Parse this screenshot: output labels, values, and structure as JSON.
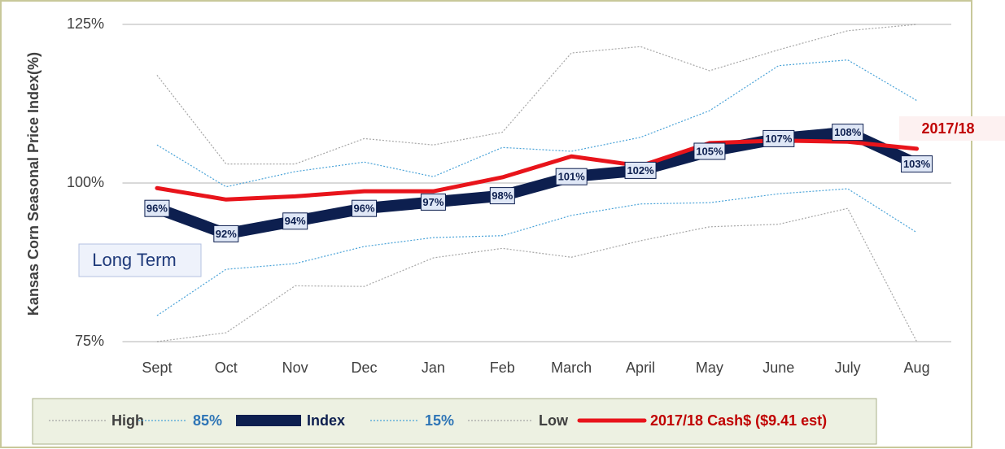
{
  "chart_data": {
    "type": "line",
    "y_label": "Kansas Corn Seasonal Price Index(%)",
    "categories": [
      "Sept",
      "Oct",
      "Nov",
      "Dec",
      "Jan",
      "Feb",
      "March",
      "April",
      "May",
      "June",
      "July",
      "Aug"
    ],
    "ylim": [
      75,
      125
    ],
    "yticks": [
      {
        "value": 75,
        "label": "75%"
      },
      {
        "value": 100,
        "label": "100%"
      },
      {
        "value": 125,
        "label": "125%"
      }
    ],
    "grid": true,
    "annotations": [
      "Long Term",
      "2017/18"
    ],
    "series": [
      {
        "name": "High",
        "color": "#a6a6a6",
        "style": "dotted",
        "values": [
          117,
          103,
          103,
          107,
          106,
          108,
          120.5,
          121.5,
          117.7,
          121,
          124,
          125
        ]
      },
      {
        "name": "85%",
        "color": "#4aa3d8",
        "style": "dotted",
        "values": [
          106,
          99.4,
          101.8,
          103.3,
          101,
          105.6,
          105,
          107.2,
          111.4,
          118.5,
          119.4,
          113
        ]
      },
      {
        "name": "Index",
        "color": "#0d1f4f",
        "style": "thick",
        "values": [
          96,
          92,
          94,
          96,
          97,
          98,
          101,
          102,
          105,
          107,
          108,
          103
        ],
        "value_labels": [
          "96%",
          "92%",
          "94%",
          "96%",
          "97%",
          "98%",
          "101%",
          "102%",
          "105%",
          "107%",
          "108%",
          "103%"
        ]
      },
      {
        "name": "15%",
        "color": "#4aa3d8",
        "style": "dotted",
        "values": [
          79.1,
          86.4,
          87.3,
          90,
          91.4,
          91.7,
          94.9,
          96.7,
          96.9,
          98.3,
          99.1,
          92.2
        ]
      },
      {
        "name": "Low",
        "color": "#a6a6a6",
        "style": "dotted",
        "values": [
          75,
          76.4,
          83.8,
          83.7,
          88.2,
          89.7,
          88.3,
          90.9,
          93.1,
          93.5,
          96,
          75
        ]
      },
      {
        "name": "2017/18 Cash$ ($9.41 est)",
        "color": "#e8141b",
        "style": "solid",
        "values": [
          99.2,
          97.4,
          97.9,
          98.7,
          98.7,
          100.9,
          104.2,
          102.7,
          106.3,
          106.7,
          106.5,
          105.4
        ]
      }
    ]
  }
}
